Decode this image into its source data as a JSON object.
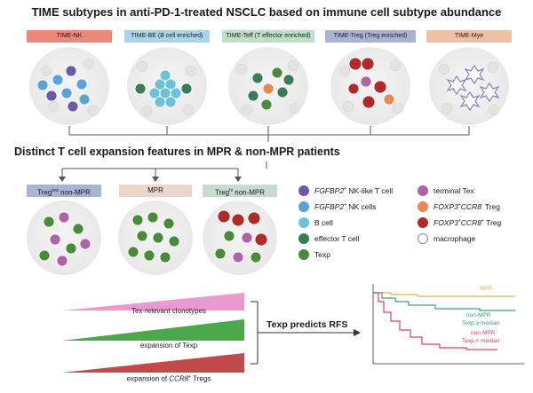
{
  "title": "TIME subtypes in anti-PD-1-treated NSCLC based on immune cell subtype abundance",
  "subtypes": [
    {
      "label": "TIME-NK",
      "color": "#e8897a"
    },
    {
      "label": "TIME-BE (B cell enriched)",
      "color": "#a9d4e9"
    },
    {
      "label": "TIME-Teff (T effector enriched)",
      "color": "#bfe0c8"
    },
    {
      "label": "TIME-Treg (Treg enriched)",
      "color": "#a8b4d4"
    },
    {
      "label": "TIME-Mye",
      "color": "#f0c0a4"
    }
  ],
  "section2_title": "Distinct T cell expansion features in MPR & non-MPR patients",
  "groups": [
    {
      "label_main": "Treg",
      "label_sup": "low",
      "label_rest": " non-MPR",
      "color": "#a8b4d4"
    },
    {
      "label_main": "MPR",
      "label_sup": "",
      "label_rest": "",
      "color": "#ecd6cc"
    },
    {
      "label_main": "Treg",
      "label_sup": "hi",
      "label_rest": " non-MPR",
      "color": "#c5dccf"
    }
  ],
  "legend": {
    "col1": [
      {
        "italic": "FGFBP2",
        "sup": "+",
        "rest": " NK-like T cell",
        "color": "#6a5aa8"
      },
      {
        "italic": "FGFBP2",
        "sup": "+",
        "rest": " NK cells",
        "color": "#5ba3d6"
      },
      {
        "italic": "",
        "sup": "",
        "rest": "B cell",
        "color": "#6cc3d8"
      },
      {
        "italic": "",
        "sup": "",
        "rest": "effector T cell",
        "color": "#3d7a5a"
      },
      {
        "italic": "",
        "sup": "",
        "rest": "Texp",
        "color": "#4a8a3a"
      }
    ],
    "col2": [
      {
        "italic": "",
        "sup": "",
        "rest": "terminal Tex",
        "color": "#b061a8"
      },
      {
        "italic": "FOXP3",
        "sup": "+",
        "italic2": "CCR8",
        "sup2": "-",
        "rest": " Treg",
        "color": "#e58a50"
      },
      {
        "italic": "FOXP3",
        "sup": "+",
        "italic2": "CCR8",
        "sup2": "+",
        "rest": " Treg",
        "color": "#b02a2a"
      },
      {
        "italic": "",
        "sup": "",
        "rest": "macrophage",
        "color": "#8f7fbf"
      }
    ]
  },
  "bottom": {
    "item1": "Tex-relevant clonotypes",
    "item2": "expansion of Texp",
    "item3_pre": "expansion of ",
    "item3_italic": "CCR8",
    "item3_sup": "+",
    "item3_post": " Tregs",
    "rfs": "Texp predicts RFS"
  },
  "km": {
    "labels": [
      "MPR",
      "non-MPR",
      "Texp ≥ median",
      "non-MPR",
      "Texp < median"
    ],
    "colors": {
      "mpr": "#e0b84a",
      "hi": "#3da07a",
      "lo": "#e0405a"
    }
  }
}
